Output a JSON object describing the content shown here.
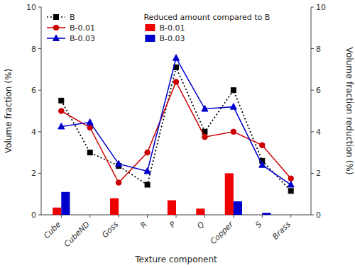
{
  "chart_data": {
    "type": "bar",
    "xlabel": "Texture component",
    "ylabel": "Volume fraction (%)",
    "y2label": "Volume fraction reduction (%)",
    "legend_title": "Reduced amount compared to B",
    "categories": [
      "Cube",
      "CubeND",
      "Goss",
      "R",
      "P",
      "Q",
      "Copper",
      "S",
      "Brass"
    ],
    "ylim": [
      0,
      10
    ],
    "yticks": [
      0,
      2,
      4,
      6,
      8,
      10
    ],
    "y2lim": [
      0,
      10
    ],
    "y2ticks": [
      0,
      2,
      4,
      6,
      8,
      10
    ],
    "series": [
      {
        "name": "B-0.01",
        "type": "bar",
        "axis": "y2",
        "color": "#ee0000",
        "values": [
          0.35,
          0,
          0.8,
          0,
          0.7,
          0.3,
          2.0,
          0,
          0
        ]
      },
      {
        "name": "B-0.03",
        "type": "bar",
        "axis": "y2",
        "color": "#0000cc",
        "values": [
          1.1,
          0,
          0,
          0,
          0,
          0,
          0.65,
          0.1,
          0
        ]
      },
      {
        "name": "B",
        "type": "line",
        "color": "#000000",
        "line_style": "dotted",
        "marker": "square",
        "values": [
          5.5,
          3.0,
          2.35,
          1.45,
          7.1,
          4.0,
          6.0,
          2.6,
          1.15
        ]
      },
      {
        "name": "B-0.01",
        "type": "line",
        "color": "#cc0000",
        "line_style": "solid",
        "marker": "circle",
        "values": [
          5.0,
          4.2,
          1.55,
          3.0,
          6.4,
          3.75,
          4.0,
          3.35,
          1.75
        ]
      },
      {
        "name": "B-0.03",
        "type": "line",
        "color": "#0000cc",
        "line_style": "solid",
        "marker": "triangle",
        "values": [
          4.25,
          4.45,
          2.45,
          2.1,
          7.55,
          5.1,
          5.2,
          2.4,
          1.45
        ]
      }
    ]
  }
}
